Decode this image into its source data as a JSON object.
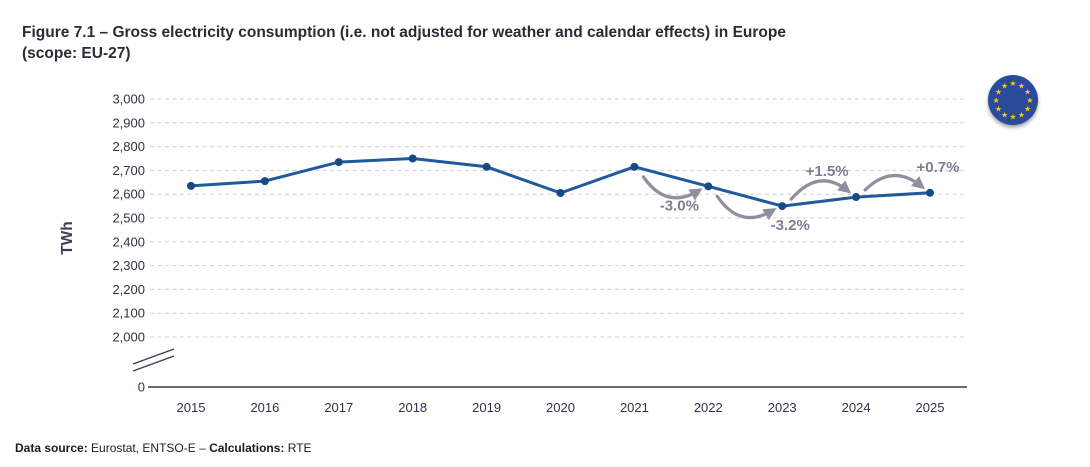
{
  "header": {
    "title_line1": "Figure 7.1 – Gross electricity consumption (i.e. not adjusted for weather and calendar effects) in Europe",
    "title_line2": "(scope: EU-27)"
  },
  "footer": {
    "label1": "Data source:",
    "text1": " Eurostat, ENTSO-E – ",
    "label2": "Calculations:",
    "text2": " RTE"
  },
  "flag": {
    "name": "eu-flag",
    "stars": 12,
    "circle_color": "#2a4b9b",
    "star_color": "#f6c714"
  },
  "chart_data": {
    "type": "line",
    "title": "",
    "xlabel": "",
    "ylabel": "TWh",
    "x": [
      2015,
      2016,
      2017,
      2018,
      2019,
      2020,
      2021,
      2022,
      2023,
      2024,
      2025
    ],
    "values": [
      2635,
      2655,
      2735,
      2750,
      2715,
      2605,
      2715,
      2633,
      2550,
      2588,
      2606
    ],
    "y_ticks": [
      2000,
      2100,
      2200,
      2300,
      2400,
      2500,
      2600,
      2700,
      2800,
      2900,
      3000
    ],
    "origin_tick_label": "0",
    "axis_break": true,
    "ylim_display": [
      2000,
      3000
    ],
    "grid": "horizontal-dashed",
    "legend": "none",
    "line_color": "#1e5a9c",
    "marker_color": "#174a84",
    "arrow_color": "#8f8f9f",
    "annotation_text_color": "#7d7d94",
    "annotations": [
      {
        "label": "-3.0%",
        "from": 2021,
        "to": 2022,
        "position": "below",
        "label_at": "mid"
      },
      {
        "label": "-3.2%",
        "from": 2022,
        "to": 2023,
        "position": "below",
        "label_at": "end"
      },
      {
        "label": "+1.5%",
        "from": 2023,
        "to": 2024,
        "position": "above",
        "label_at": "mid"
      },
      {
        "label": "+0.7%",
        "from": 2024,
        "to": 2025,
        "position": "above",
        "label_at": "end"
      }
    ]
  }
}
